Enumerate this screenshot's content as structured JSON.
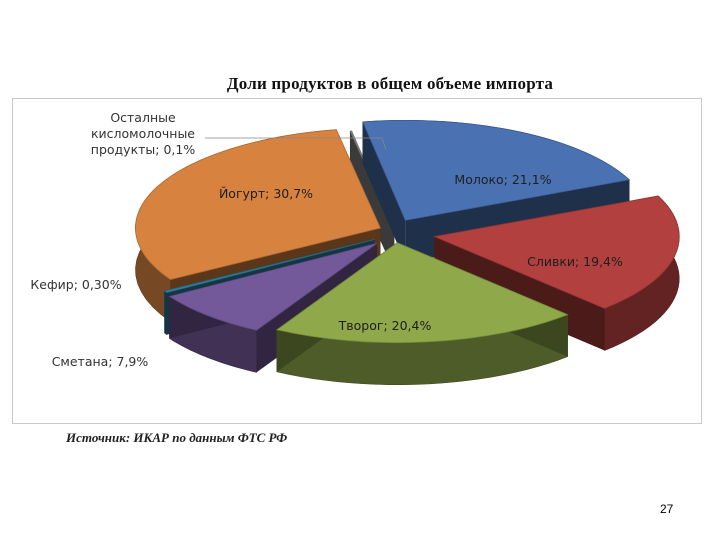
{
  "chart_data": {
    "type": "pie",
    "title": "Доли продуктов в общем объеме импорта",
    "slices": [
      {
        "label": "Молоко",
        "value": 21.1,
        "text": "Молоко; 21,1%",
        "color": "#4a72b3"
      },
      {
        "label": "Сливки",
        "value": 19.4,
        "text": "Сливки; 19,4%",
        "color": "#b2403e"
      },
      {
        "label": "Творог",
        "value": 20.4,
        "text": "Творог; 20,4%",
        "color": "#8ea84a"
      },
      {
        "label": "Сметана",
        "value": 7.9,
        "text": "Сметана; 7,9%",
        "color": "#74599a"
      },
      {
        "label": "Кефир",
        "value": 0.3,
        "text": "Кефир; 0,30%",
        "color": "#2f7fa0"
      },
      {
        "label": "Йогурт",
        "value": 30.7,
        "text": "Йогурт; 30,7%",
        "color": "#d7833f"
      },
      {
        "label": "Осталные кисломолочные продукты",
        "value": 0.1,
        "text": [
          "Осталные",
          "кисломолочные",
          "продукты; 0,1%"
        ],
        "color": "#8a8a8a"
      }
    ]
  },
  "source": "Источник: ИКАР по данным ФТС РФ",
  "page_number": "27"
}
